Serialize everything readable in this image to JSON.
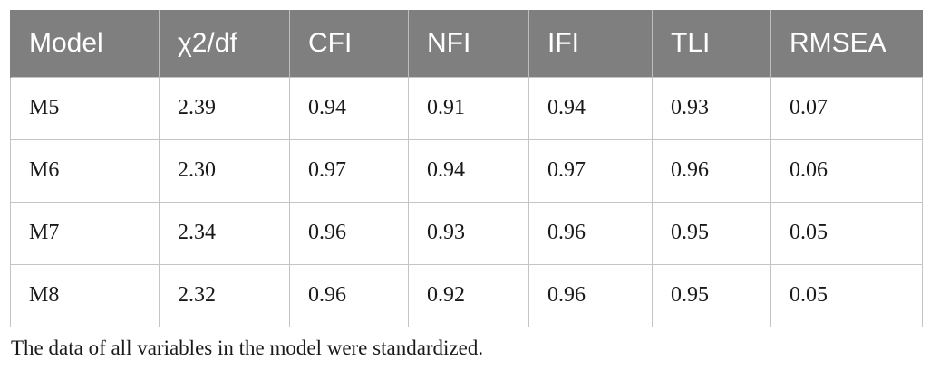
{
  "table": {
    "headers": [
      "Model",
      "χ2/df",
      "CFI",
      "NFI",
      "IFI",
      "TLI",
      "RMSEA"
    ],
    "rows": [
      [
        "M5",
        "2.39",
        "0.94",
        "0.91",
        "0.94",
        "0.93",
        "0.07"
      ],
      [
        "M6",
        "2.30",
        "0.97",
        "0.94",
        "0.97",
        "0.96",
        "0.06"
      ],
      [
        "M7",
        "2.34",
        "0.96",
        "0.93",
        "0.96",
        "0.95",
        "0.05"
      ],
      [
        "M8",
        "2.32",
        "0.96",
        "0.92",
        "0.96",
        "0.95",
        "0.05"
      ]
    ]
  },
  "footnote": "The data of all variables in the model were standardized."
}
